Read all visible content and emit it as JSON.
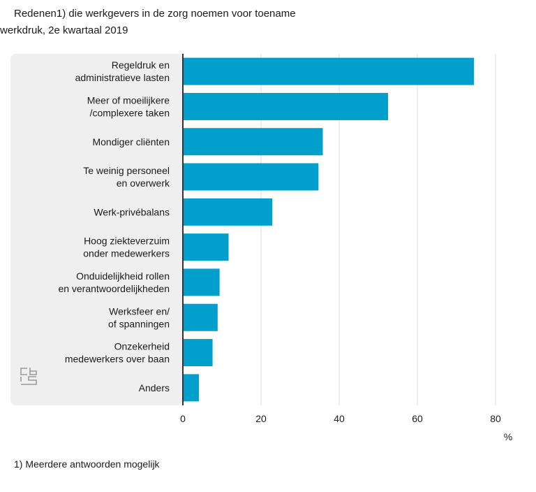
{
  "title_line1": "Redenen1) die werkgevers in de zorg noemen voor toename",
  "title_line2": "werkdruk, 2e kwartaal 2019",
  "footnote": "1) Meerdere antwoorden mogelijk",
  "logo_icon": "cbs-logo-icon",
  "colors": {
    "bar": "#009fcc",
    "panel": "#efefef",
    "axis": "#333333",
    "grid": "#dddddd"
  },
  "chart_data": {
    "type": "bar",
    "orientation": "horizontal",
    "categories": [
      [
        "Regeldruk en",
        "administratieve lasten"
      ],
      [
        "Meer of moeilijkere",
        "/complexere taken"
      ],
      [
        "Mondiger cliënten"
      ],
      [
        "Te weinig personeel",
        "en overwerk"
      ],
      [
        "Werk-privébalans"
      ],
      [
        "Hoog ziekteverzuim",
        "onder medewerkers"
      ],
      [
        "Onduidelijkheid rollen",
        "en verantwoordelijkheden"
      ],
      [
        "Werksfeer en/",
        "of spanningen"
      ],
      [
        "Onzekerheid",
        "medewerkers over baan"
      ],
      [
        "Anders"
      ]
    ],
    "values": [
      74.5,
      52.5,
      35.8,
      34.7,
      22.9,
      11.7,
      9.4,
      8.9,
      7.6,
      4.1
    ],
    "xlim": [
      0,
      80
    ],
    "xticks": [
      "0",
      "20",
      "40",
      "60",
      "80"
    ],
    "xlabel": "%",
    "grid": true
  }
}
